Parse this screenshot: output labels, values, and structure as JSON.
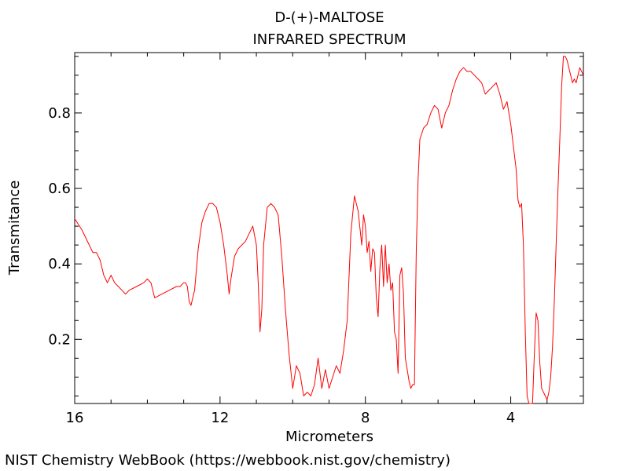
{
  "footer": {
    "credit": "NIST Chemistry WebBook (https://webbook.nist.gov/chemistry)"
  },
  "chart_data": {
    "type": "line",
    "title": "D-(+)-MALTOSE",
    "subtitle": "INFRARED SPECTRUM",
    "xlabel": "Micrometers",
    "ylabel": "Transmitance",
    "xlim": [
      16,
      2
    ],
    "ylim": [
      0.03,
      0.96
    ],
    "x_reversed": true,
    "xticks": [
      16,
      12,
      8,
      4
    ],
    "yticks": [
      0.2,
      0.4,
      0.6,
      0.8
    ],
    "grid": false,
    "line_color": "#ff0000",
    "series": [
      {
        "x": [
          16.0,
          15.8,
          15.6,
          15.5,
          15.4,
          15.3,
          15.2,
          15.1,
          15.0,
          14.9,
          14.8,
          14.7,
          14.6,
          14.5,
          14.3,
          14.1,
          14.0,
          13.9,
          13.8,
          13.6,
          13.4,
          13.2,
          13.1,
          13.0,
          12.95,
          12.9,
          12.85,
          12.8,
          12.7,
          12.6,
          12.5,
          12.4,
          12.3,
          12.2,
          12.1,
          12.0,
          11.9,
          11.8,
          11.75,
          11.7,
          11.6,
          11.5,
          11.4,
          11.3,
          11.2,
          11.1,
          11.0,
          10.95,
          10.9,
          10.85,
          10.8,
          10.7,
          10.6,
          10.5,
          10.4,
          10.3,
          10.2,
          10.1,
          10.0,
          9.9,
          9.8,
          9.7,
          9.6,
          9.5,
          9.4,
          9.3,
          9.2,
          9.1,
          9.0,
          8.9,
          8.8,
          8.7,
          8.6,
          8.5,
          8.4,
          8.3,
          8.2,
          8.1,
          8.05,
          8.0,
          7.95,
          7.9,
          7.85,
          7.8,
          7.75,
          7.7,
          7.65,
          7.6,
          7.55,
          7.5,
          7.45,
          7.4,
          7.35,
          7.3,
          7.25,
          7.2,
          7.15,
          7.1,
          7.05,
          7.0,
          6.95,
          6.9,
          6.85,
          6.8,
          6.75,
          6.7,
          6.65,
          6.6,
          6.55,
          6.5,
          6.4,
          6.3,
          6.2,
          6.1,
          6.0,
          5.9,
          5.8,
          5.7,
          5.6,
          5.5,
          5.4,
          5.3,
          5.2,
          5.1,
          5.0,
          4.9,
          4.8,
          4.7,
          4.6,
          4.5,
          4.4,
          4.3,
          4.2,
          4.1,
          4.0,
          3.95,
          3.9,
          3.85,
          3.8,
          3.75,
          3.7,
          3.65,
          3.6,
          3.55,
          3.5,
          3.45,
          3.4,
          3.35,
          3.3,
          3.25,
          3.2,
          3.15,
          3.1,
          3.05,
          3.0,
          2.95,
          2.9,
          2.85,
          2.8,
          2.75,
          2.7,
          2.65,
          2.6,
          2.55,
          2.5,
          2.45,
          2.4,
          2.35,
          2.3,
          2.25,
          2.2,
          2.1,
          2.0
        ],
        "y": [
          0.52,
          0.49,
          0.45,
          0.43,
          0.43,
          0.41,
          0.37,
          0.35,
          0.37,
          0.35,
          0.34,
          0.33,
          0.32,
          0.33,
          0.34,
          0.35,
          0.36,
          0.35,
          0.31,
          0.32,
          0.33,
          0.34,
          0.34,
          0.35,
          0.35,
          0.34,
          0.3,
          0.29,
          0.33,
          0.44,
          0.51,
          0.54,
          0.56,
          0.56,
          0.55,
          0.51,
          0.45,
          0.37,
          0.32,
          0.36,
          0.42,
          0.44,
          0.45,
          0.46,
          0.48,
          0.5,
          0.45,
          0.35,
          0.22,
          0.28,
          0.45,
          0.55,
          0.56,
          0.55,
          0.53,
          0.42,
          0.28,
          0.16,
          0.07,
          0.13,
          0.11,
          0.05,
          0.06,
          0.05,
          0.08,
          0.15,
          0.07,
          0.12,
          0.07,
          0.1,
          0.13,
          0.11,
          0.17,
          0.25,
          0.48,
          0.58,
          0.54,
          0.45,
          0.53,
          0.5,
          0.43,
          0.46,
          0.38,
          0.44,
          0.43,
          0.31,
          0.26,
          0.39,
          0.45,
          0.34,
          0.45,
          0.35,
          0.4,
          0.33,
          0.35,
          0.22,
          0.2,
          0.11,
          0.37,
          0.39,
          0.32,
          0.15,
          0.12,
          0.09,
          0.07,
          0.08,
          0.08,
          0.43,
          0.62,
          0.73,
          0.76,
          0.77,
          0.8,
          0.82,
          0.81,
          0.76,
          0.8,
          0.82,
          0.86,
          0.89,
          0.91,
          0.92,
          0.91,
          0.91,
          0.9,
          0.89,
          0.88,
          0.85,
          0.86,
          0.87,
          0.88,
          0.85,
          0.81,
          0.83,
          0.77,
          0.73,
          0.69,
          0.65,
          0.57,
          0.55,
          0.56,
          0.45,
          0.22,
          0.05,
          0.03,
          0.03,
          0.03,
          0.16,
          0.27,
          0.25,
          0.14,
          0.07,
          0.06,
          0.05,
          0.04,
          0.06,
          0.1,
          0.18,
          0.3,
          0.45,
          0.6,
          0.73,
          0.87,
          0.95,
          0.95,
          0.94,
          0.92,
          0.9,
          0.88,
          0.89,
          0.88,
          0.92,
          0.9
        ]
      }
    ]
  }
}
